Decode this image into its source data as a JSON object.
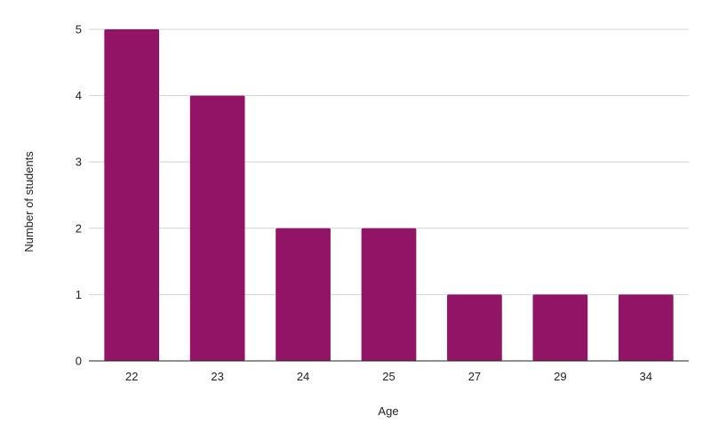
{
  "chart_data": {
    "type": "bar",
    "xlabel": "Age",
    "ylabel": "Number of students",
    "categories": [
      "22",
      "23",
      "24",
      "25",
      "27",
      "29",
      "34"
    ],
    "values": [
      5,
      4,
      2,
      2,
      1,
      1,
      1
    ],
    "ylim": [
      0,
      5
    ],
    "yticks": [
      0,
      1,
      2,
      3,
      4,
      5
    ],
    "grid": true,
    "legend": "none",
    "colors": {
      "bar": "#921467",
      "grid": "#d3d3d3",
      "axis": "#222222"
    }
  }
}
